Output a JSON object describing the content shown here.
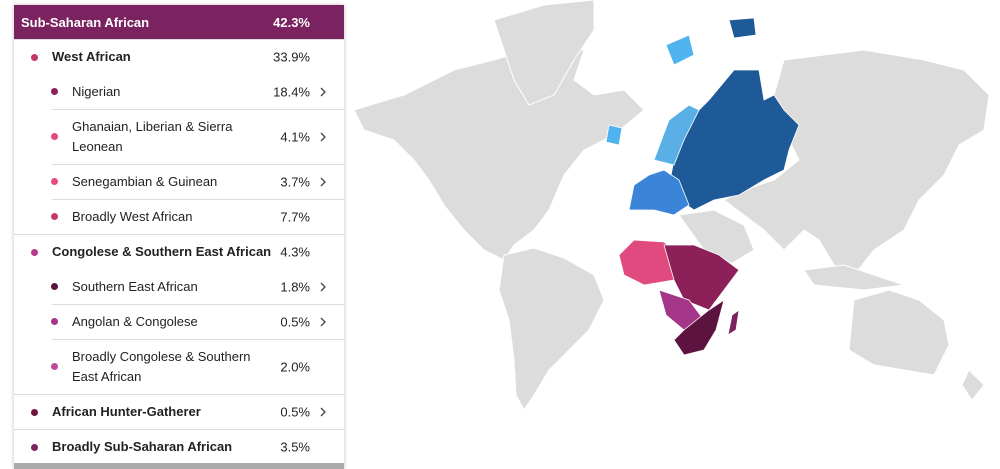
{
  "header": {
    "name": "Sub-Saharan African",
    "percent": "42.3%"
  },
  "items": [
    {
      "name": "West African",
      "percent": "33.9%"
    },
    {
      "name": "Nigerian",
      "percent": "18.4%"
    },
    {
      "name": "Ghanaian, Liberian & Sierra Leonean",
      "percent": "4.1%"
    },
    {
      "name": "Senegambian & Guinean",
      "percent": "3.7%"
    },
    {
      "name": "Broadly West African",
      "percent": "7.7%"
    },
    {
      "name": "Congolese & Southern East African",
      "percent": "4.3%"
    },
    {
      "name": "Southern East African",
      "percent": "1.8%"
    },
    {
      "name": "Angolan & Congolese",
      "percent": "0.5%"
    },
    {
      "name": "Broadly Congolese & Southern East African",
      "percent": "2.0%"
    },
    {
      "name": "African Hunter-Gatherer",
      "percent": "0.5%"
    },
    {
      "name": "Broadly Sub-Saharan African",
      "percent": "3.5%"
    }
  ]
}
